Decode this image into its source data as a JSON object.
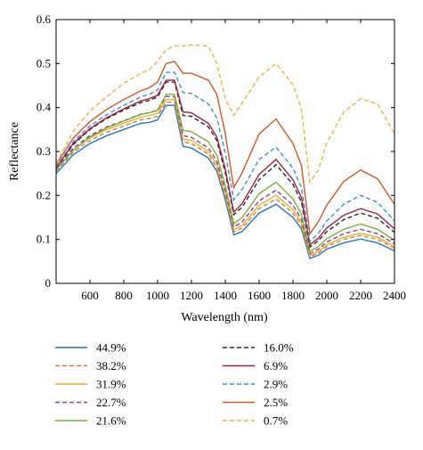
{
  "chart_data": {
    "type": "line",
    "title": "",
    "xlabel": "Wavelength (nm)",
    "ylabel": "Reflectance",
    "xlim": [
      400,
      2400
    ],
    "ylim": [
      0,
      0.6
    ],
    "xticks": [
      600,
      800,
      1000,
      1200,
      1400,
      1600,
      1800,
      2000,
      2200,
      2400
    ],
    "xtick_labels": [
      "600",
      "800",
      "1000",
      "1200",
      "1400",
      "1600",
      "1800",
      "2000",
      "2200",
      "2400"
    ],
    "yticks": [
      0,
      0.1,
      0.2,
      0.3,
      0.4,
      0.5,
      0.6
    ],
    "ytick_labels": [
      "0",
      "0.1",
      "0.2",
      "0.3",
      "0.4",
      "0.5",
      "0.6"
    ],
    "grid": false,
    "legend_position": "below",
    "x": [
      400,
      500,
      600,
      700,
      800,
      900,
      950,
      1000,
      1050,
      1100,
      1150,
      1200,
      1300,
      1350,
      1400,
      1450,
      1500,
      1600,
      1700,
      1800,
      1850,
      1900,
      1950,
      2000,
      2100,
      2200,
      2300,
      2400
    ],
    "series": [
      {
        "name": "44.9%",
        "color": "#1f77c9",
        "dash": "solid",
        "values": [
          0.25,
          0.292,
          0.318,
          0.336,
          0.35,
          0.364,
          0.366,
          0.372,
          0.405,
          0.405,
          0.312,
          0.308,
          0.285,
          0.255,
          0.19,
          0.11,
          0.118,
          0.16,
          0.18,
          0.15,
          0.124,
          0.057,
          0.064,
          0.078,
          0.092,
          0.101,
          0.092,
          0.074
        ]
      },
      {
        "name": "38.2%",
        "color": "#e07b39",
        "dash": "dashed",
        "values": [
          0.255,
          0.298,
          0.325,
          0.344,
          0.358,
          0.372,
          0.375,
          0.38,
          0.412,
          0.412,
          0.322,
          0.318,
          0.294,
          0.263,
          0.198,
          0.117,
          0.126,
          0.17,
          0.192,
          0.16,
          0.132,
          0.061,
          0.069,
          0.084,
          0.1,
          0.109,
          0.1,
          0.08
        ]
      },
      {
        "name": "31.9%",
        "color": "#e9b02a",
        "dash": "solid",
        "values": [
          0.26,
          0.303,
          0.331,
          0.35,
          0.364,
          0.378,
          0.382,
          0.387,
          0.418,
          0.418,
          0.328,
          0.325,
          0.3,
          0.27,
          0.204,
          0.122,
          0.132,
          0.178,
          0.2,
          0.168,
          0.138,
          0.064,
          0.073,
          0.088,
          0.105,
          0.114,
          0.105,
          0.084
        ]
      },
      {
        "name": "22.7%",
        "color": "#8b3f9c",
        "dash": "dashed",
        "values": [
          0.262,
          0.307,
          0.336,
          0.356,
          0.37,
          0.385,
          0.388,
          0.393,
          0.425,
          0.425,
          0.336,
          0.332,
          0.308,
          0.278,
          0.212,
          0.128,
          0.14,
          0.188,
          0.212,
          0.178,
          0.146,
          0.068,
          0.078,
          0.094,
          0.113,
          0.123,
          0.113,
          0.09
        ]
      },
      {
        "name": "21.6%",
        "color": "#78b23d",
        "dash": "solid",
        "values": [
          0.258,
          0.302,
          0.333,
          0.354,
          0.369,
          0.384,
          0.388,
          0.394,
          0.43,
          0.43,
          0.348,
          0.345,
          0.322,
          0.292,
          0.222,
          0.136,
          0.15,
          0.204,
          0.23,
          0.192,
          0.158,
          0.073,
          0.084,
          0.102,
          0.123,
          0.135,
          0.123,
          0.098
        ]
      },
      {
        "name": "16.0%",
        "color": "#2b2b2b",
        "dash": "dashed",
        "values": [
          0.262,
          0.315,
          0.35,
          0.375,
          0.394,
          0.411,
          0.416,
          0.424,
          0.458,
          0.458,
          0.382,
          0.38,
          0.356,
          0.325,
          0.252,
          0.156,
          0.174,
          0.236,
          0.27,
          0.225,
          0.185,
          0.083,
          0.097,
          0.118,
          0.145,
          0.16,
          0.148,
          0.116
        ]
      },
      {
        "name": "6.9%",
        "color": "#a3213a",
        "dash": "solid",
        "values": [
          0.262,
          0.318,
          0.352,
          0.377,
          0.397,
          0.415,
          0.42,
          0.428,
          0.462,
          0.462,
          0.39,
          0.388,
          0.364,
          0.333,
          0.26,
          0.162,
          0.182,
          0.248,
          0.282,
          0.236,
          0.195,
          0.088,
          0.103,
          0.126,
          0.155,
          0.17,
          0.158,
          0.124
        ]
      },
      {
        "name": "2.9%",
        "color": "#3b8fd9",
        "dash": "dashed",
        "values": [
          0.265,
          0.322,
          0.358,
          0.384,
          0.405,
          0.424,
          0.43,
          0.44,
          0.48,
          0.48,
          0.434,
          0.432,
          0.408,
          0.376,
          0.296,
          0.19,
          0.214,
          0.282,
          0.31,
          0.262,
          0.218,
          0.095,
          0.114,
          0.142,
          0.18,
          0.2,
          0.184,
          0.142
        ]
      },
      {
        "name": "2.5%",
        "color": "#d5582a",
        "dash": "solid",
        "values": [
          0.27,
          0.33,
          0.368,
          0.396,
          0.418,
          0.438,
          0.445,
          0.458,
          0.5,
          0.505,
          0.478,
          0.478,
          0.462,
          0.43,
          0.34,
          0.218,
          0.252,
          0.34,
          0.374,
          0.318,
          0.268,
          0.113,
          0.14,
          0.178,
          0.232,
          0.258,
          0.238,
          0.18
        ]
      },
      {
        "name": "0.7%",
        "color": "#f2b24a",
        "dash": "dashed",
        "values": [
          0.272,
          0.345,
          0.392,
          0.425,
          0.455,
          0.478,
          0.486,
          0.505,
          0.532,
          0.54,
          0.54,
          0.542,
          0.54,
          0.5,
          0.42,
          0.382,
          0.41,
          0.47,
          0.5,
          0.452,
          0.396,
          0.23,
          0.258,
          0.32,
          0.39,
          0.42,
          0.408,
          0.34
        ]
      }
    ]
  }
}
